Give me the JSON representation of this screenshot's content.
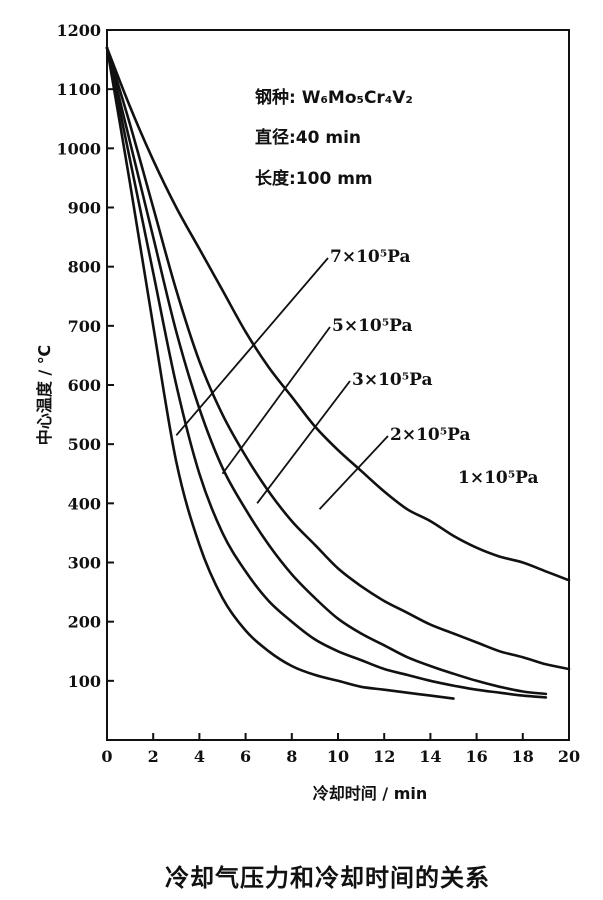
{
  "chart_data": {
    "type": "line",
    "title": "",
    "xlabel": "冷却时间 / min",
    "ylabel": "中心温度 / ℃",
    "xlim": [
      0,
      20
    ],
    "ylim": [
      0,
      1200
    ],
    "x_ticks": [
      "0",
      "2",
      "4",
      "6",
      "8",
      "10",
      "12",
      "14",
      "16",
      "18",
      "20"
    ],
    "y_ticks": [
      "100",
      "200",
      "300",
      "400",
      "500",
      "600",
      "700",
      "800",
      "900",
      "1000",
      "1100",
      "1200"
    ],
    "grid": false,
    "annotations": [
      "钢种: W₆Mo₅Cr₄V₂",
      "直径:40 min",
      "长度:100 mm"
    ],
    "series": [
      {
        "name": "7×10⁵Pa",
        "x": [
          0,
          1,
          2,
          3,
          4,
          5,
          6,
          7,
          8,
          9,
          10,
          11,
          12,
          13,
          14,
          15
        ],
        "y": [
          1170,
          940,
          700,
          470,
          330,
          240,
          185,
          150,
          125,
          110,
          100,
          90,
          85,
          80,
          75,
          70
        ]
      },
      {
        "name": "5×10⁵Pa",
        "x": [
          0,
          1,
          2,
          3,
          4,
          5,
          6,
          7,
          8,
          9,
          10,
          11,
          12,
          13,
          14,
          15,
          16,
          17,
          18,
          19
        ],
        "y": [
          1170,
          980,
          790,
          600,
          450,
          350,
          285,
          235,
          200,
          170,
          150,
          135,
          120,
          110,
          100,
          92,
          85,
          80,
          75,
          72
        ]
      },
      {
        "name": "3×10⁵Pa",
        "x": [
          0,
          1,
          2,
          3,
          4,
          5,
          6,
          7,
          8,
          9,
          10,
          11,
          12,
          13,
          14,
          15,
          16,
          17,
          18,
          19
        ],
        "y": [
          1170,
          1010,
          850,
          690,
          560,
          460,
          390,
          330,
          280,
          240,
          205,
          180,
          160,
          140,
          125,
          112,
          100,
          90,
          82,
          78
        ]
      },
      {
        "name": "2×10⁵Pa",
        "x": [
          0,
          1,
          2,
          3,
          4,
          5,
          6,
          7,
          8,
          9,
          10,
          11,
          12,
          13,
          14,
          15,
          16,
          17,
          18,
          19,
          20
        ],
        "y": [
          1170,
          1040,
          900,
          760,
          640,
          550,
          480,
          420,
          370,
          330,
          290,
          260,
          235,
          215,
          195,
          180,
          165,
          150,
          140,
          128,
          120
        ]
      },
      {
        "name": "1×10⁵Pa",
        "x": [
          0,
          1,
          2,
          3,
          4,
          5,
          6,
          7,
          8,
          9,
          10,
          11,
          12,
          13,
          14,
          15,
          16,
          17,
          18,
          19,
          20
        ],
        "y": [
          1170,
          1070,
          980,
          900,
          830,
          760,
          690,
          630,
          580,
          530,
          490,
          455,
          420,
          390,
          370,
          345,
          325,
          310,
          300,
          285,
          270
        ]
      }
    ]
  },
  "caption": "冷却气压力和冷却时间的关系"
}
